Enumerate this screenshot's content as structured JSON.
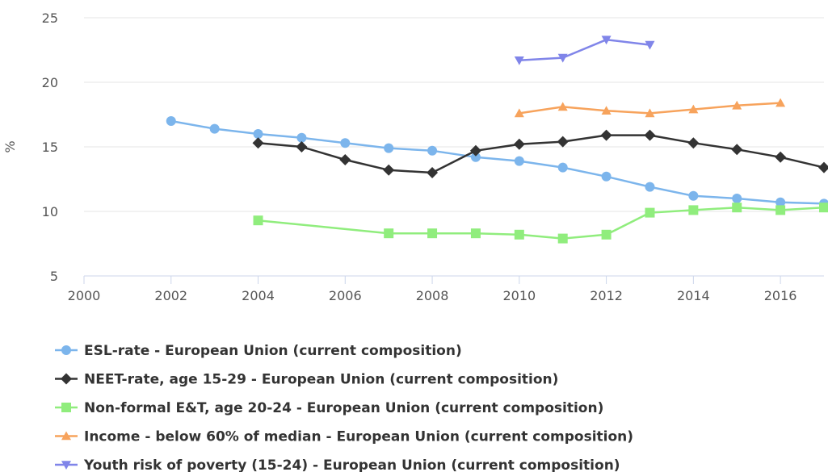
{
  "chart_data": {
    "type": "line",
    "ylabel": "%",
    "xlim": [
      2000,
      2017
    ],
    "ylim": [
      5,
      25
    ],
    "x_ticks": [
      "2000",
      "2002",
      "2004",
      "2006",
      "2008",
      "2010",
      "2012",
      "2014",
      "2016"
    ],
    "y_ticks": [
      "5",
      "10",
      "15",
      "20",
      "25"
    ],
    "grid": "horizontal",
    "legend_position": "bottom-left",
    "series": [
      {
        "name": "ESL-rate - European Union (current composition)",
        "color": "#7cb5ec",
        "marker": "circle",
        "points": [
          [
            2002,
            17.0
          ],
          [
            2003,
            16.4
          ],
          [
            2004,
            16.0
          ],
          [
            2005,
            15.7
          ],
          [
            2006,
            15.3
          ],
          [
            2007,
            14.9
          ],
          [
            2008,
            14.7
          ],
          [
            2009,
            14.2
          ],
          [
            2010,
            13.9
          ],
          [
            2011,
            13.4
          ],
          [
            2012,
            12.7
          ],
          [
            2013,
            11.9
          ],
          [
            2014,
            11.2
          ],
          [
            2015,
            11.0
          ],
          [
            2016,
            10.7
          ],
          [
            2017,
            10.6
          ]
        ]
      },
      {
        "name": "NEET-rate, age 15-29 - European Union (current composition)",
        "color": "#333333",
        "marker": "diamond",
        "points": [
          [
            2004,
            15.3
          ],
          [
            2005,
            15.0
          ],
          [
            2006,
            14.0
          ],
          [
            2007,
            13.2
          ],
          [
            2008,
            13.0
          ],
          [
            2009,
            14.7
          ],
          [
            2010,
            15.2
          ],
          [
            2011,
            15.4
          ],
          [
            2012,
            15.9
          ],
          [
            2013,
            15.9
          ],
          [
            2014,
            15.3
          ],
          [
            2015,
            14.8
          ],
          [
            2016,
            14.2
          ],
          [
            2017,
            13.4
          ]
        ]
      },
      {
        "name": "Non-formal E&T, age 20-24 - European Union (current composition)",
        "color": "#90ed7d",
        "marker": "square",
        "points": [
          [
            2004,
            9.3
          ],
          [
            2007,
            8.3
          ],
          [
            2008,
            8.3
          ],
          [
            2009,
            8.3
          ],
          [
            2010,
            8.2
          ],
          [
            2011,
            7.9
          ],
          [
            2012,
            8.2
          ],
          [
            2013,
            9.9
          ],
          [
            2014,
            10.1
          ],
          [
            2015,
            10.3
          ],
          [
            2016,
            10.1
          ],
          [
            2017,
            10.3
          ]
        ]
      },
      {
        "name": "Income - below 60% of median - European Union (current composition)",
        "color": "#f7a35c",
        "marker": "triangle",
        "points": [
          [
            2010,
            17.6
          ],
          [
            2011,
            18.1
          ],
          [
            2012,
            17.8
          ],
          [
            2013,
            17.6
          ],
          [
            2014,
            17.9
          ],
          [
            2015,
            18.2
          ],
          [
            2016,
            18.4
          ]
        ]
      },
      {
        "name": "Youth risk of poverty (15-24) - European Union (current composition)",
        "color": "#8085e9",
        "marker": "triangle-down",
        "points": [
          [
            2010,
            21.7
          ],
          [
            2011,
            21.9
          ],
          [
            2012,
            23.3
          ],
          [
            2013,
            22.9
          ]
        ]
      }
    ]
  }
}
